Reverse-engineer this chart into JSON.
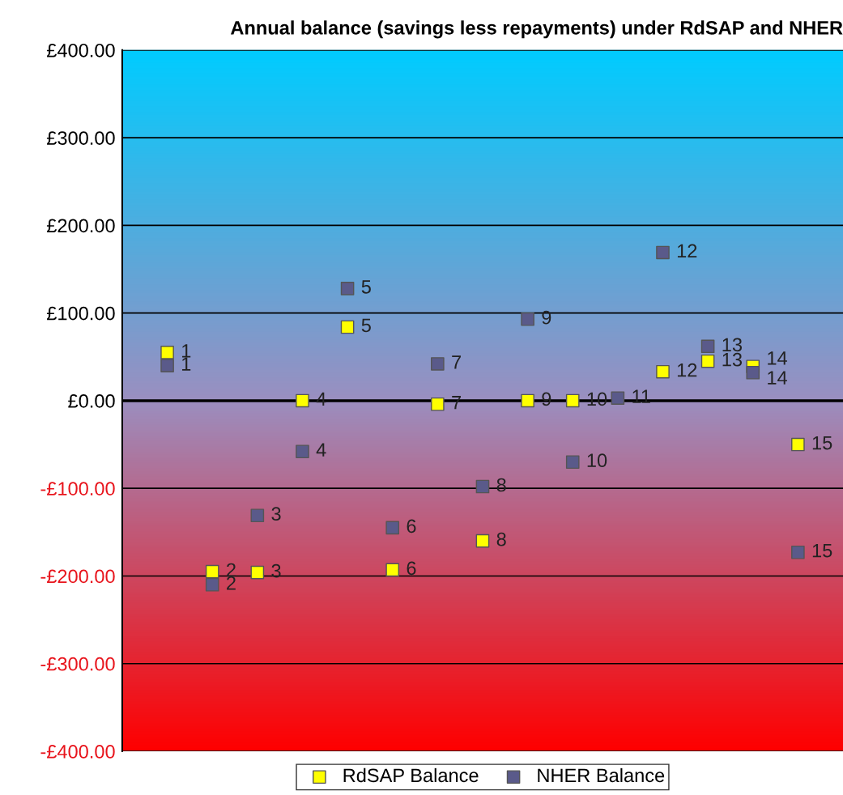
{
  "chart_data": {
    "type": "scatter",
    "title": "Annual balance (savings less repayments) under RdSAP and NHER",
    "categories": [
      null,
      null,
      null,
      null,
      null,
      null,
      null,
      null,
      null,
      null,
      null,
      null,
      null,
      null,
      null
    ],
    "tick_labels": "y",
    "ylim": [
      -400,
      400
    ],
    "yticks": [
      {
        "value": -400,
        "label": "-£400.00"
      },
      {
        "value": -300,
        "label": "-£300.00"
      },
      {
        "value": -200,
        "label": "-£200.00"
      },
      {
        "value": -100,
        "label": "-£100.00"
      },
      {
        "value": 0,
        "label": "£0.00"
      },
      {
        "value": 100,
        "label": "£100.00"
      },
      {
        "value": 200,
        "label": "£200.00"
      },
      {
        "value": 300,
        "label": "£300.00"
      },
      {
        "value": 400,
        "label": "£400.00"
      }
    ],
    "grid": "y",
    "marker": "square",
    "legend": "bottom",
    "series": [
      {
        "name": "RdSAP Balance",
        "color": "#ffff00",
        "values": [
          55,
          -195,
          -196,
          0,
          84,
          -193,
          -4,
          -160,
          0,
          0,
          null,
          33,
          45,
          39,
          -50
        ]
      },
      {
        "name": "NHER Balance",
        "color": "#5a5a8a",
        "values": [
          40,
          -210,
          -131,
          -58,
          128,
          -145,
          42,
          -98,
          93,
          -70,
          3,
          169,
          62,
          32,
          -173
        ]
      }
    ],
    "annotations": [
      "1",
      "2",
      "3",
      "4",
      "5",
      "6",
      "7",
      "8",
      "9",
      "10",
      "12",
      "13",
      "14",
      "15",
      "1",
      "2",
      "3",
      "4",
      "5",
      "6",
      "7",
      "8",
      "9",
      "10",
      "11",
      "12",
      "13",
      "14",
      "15"
    ]
  }
}
